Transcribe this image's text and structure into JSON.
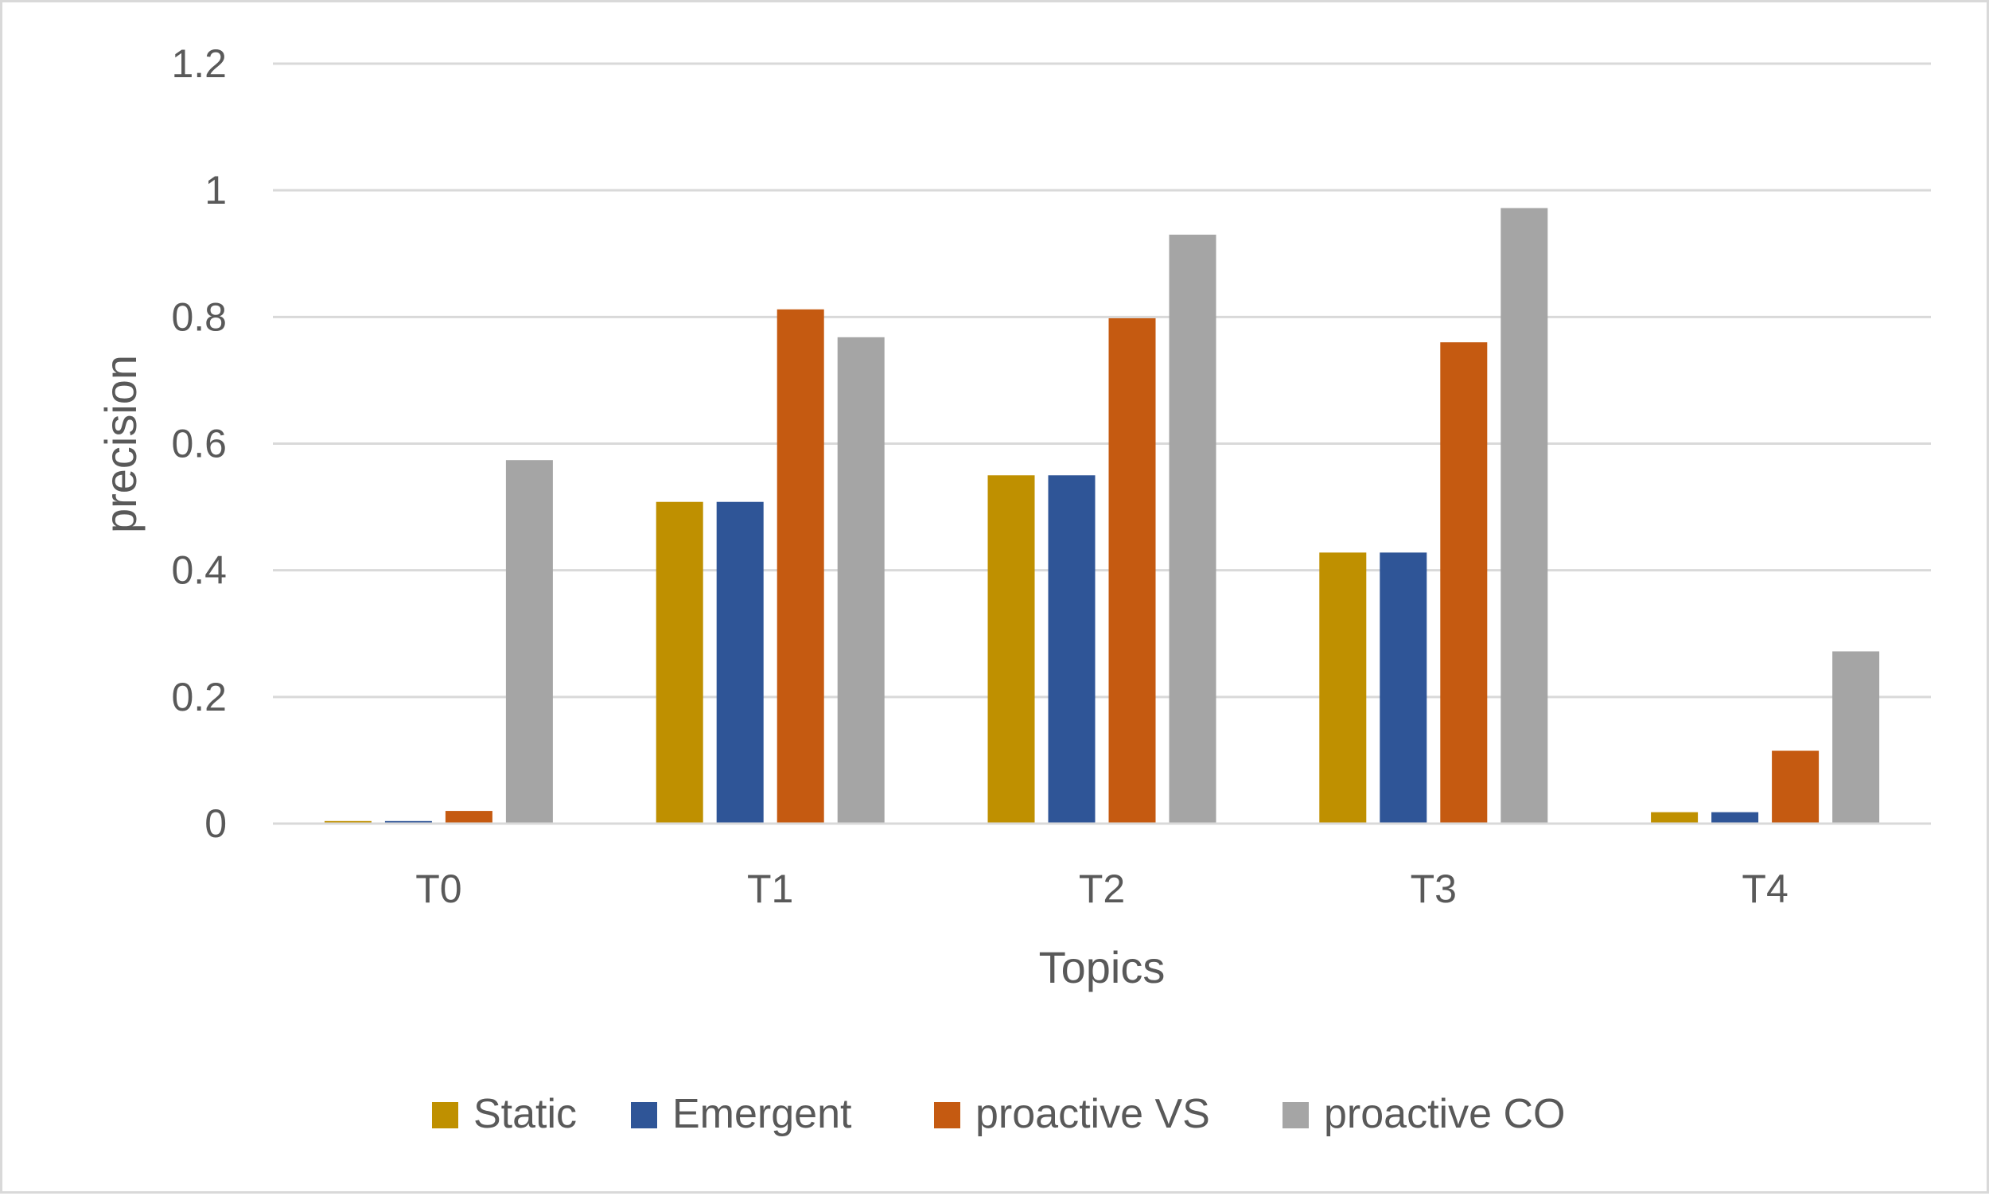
{
  "chart_data": {
    "type": "bar",
    "title": "",
    "xlabel": "Topics",
    "ylabel": "precision",
    "categories": [
      "T0",
      "T1",
      "T2",
      "T3",
      "T4"
    ],
    "ylim": [
      0,
      1.2
    ],
    "yticks": [
      0,
      0.2,
      0.4,
      0.6,
      0.8,
      1,
      1.2
    ],
    "ytick_labels": [
      "0",
      "0.2",
      "0.4",
      "0.6",
      "0.8",
      "1",
      "1.2"
    ],
    "grid": true,
    "legend_position": "bottom",
    "series": [
      {
        "name": "Static",
        "color": "#bf9000",
        "values": [
          0.004,
          0.508,
          0.55,
          0.428,
          0.018
        ]
      },
      {
        "name": "Emergent",
        "color": "#2f5597",
        "values": [
          0.004,
          0.508,
          0.55,
          0.428,
          0.018
        ]
      },
      {
        "name": "proactive VS",
        "color": "#c55a11",
        "values": [
          0.02,
          0.812,
          0.798,
          0.76,
          0.115
        ]
      },
      {
        "name": "proactive CO",
        "color": "#a5a5a5",
        "values": [
          0.574,
          0.768,
          0.93,
          0.972,
          0.272
        ]
      }
    ]
  }
}
